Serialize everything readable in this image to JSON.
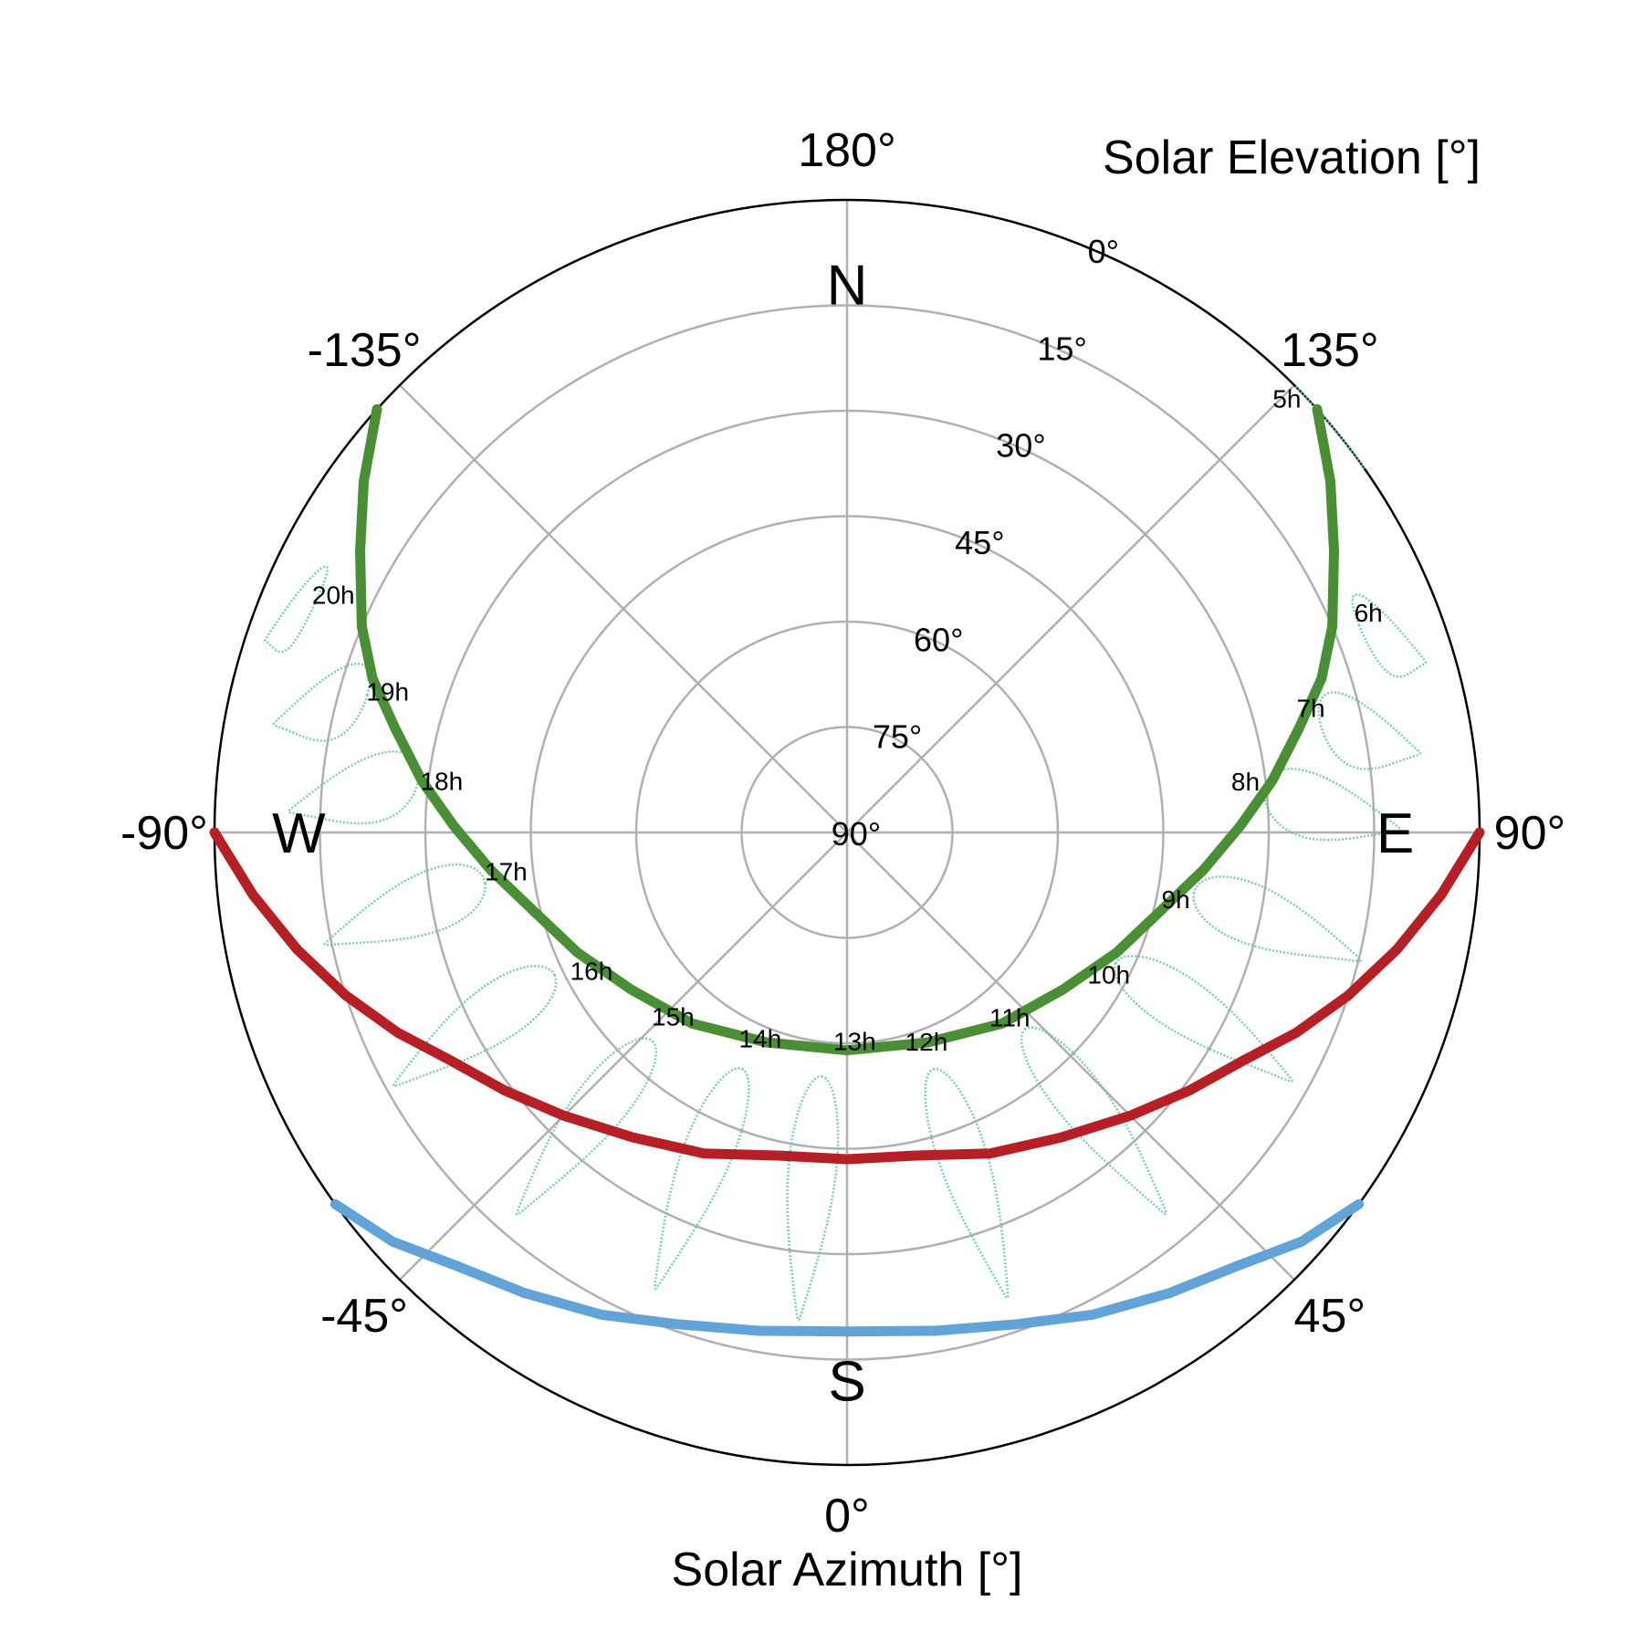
{
  "chart_data": {
    "type": "polar",
    "projection": "sun-path (azimuth 0° = south at bottom, elevation 90° at center)",
    "xlabel": "Solar Azimuth [°]",
    "ylabel": "Solar Elevation [°]",
    "azimuth_ticks": [
      {
        "value": 180,
        "label": "180°"
      },
      {
        "value": -45,
        "label": "-45°"
      },
      {
        "value": 135,
        "label": "135°"
      },
      {
        "value": -90,
        "label": "-90°"
      },
      {
        "value": 90,
        "label": "90°"
      },
      {
        "value": -135,
        "label": "-135°"
      },
      {
        "value": 45,
        "label": "45°"
      },
      {
        "value": 0,
        "label": "0°"
      }
    ],
    "elevation_ticks": [
      {
        "value": 0,
        "label": "0°"
      },
      {
        "value": 15,
        "label": "15°"
      },
      {
        "value": 30,
        "label": "30°"
      },
      {
        "value": 45,
        "label": "45°"
      },
      {
        "value": 60,
        "label": "60°"
      },
      {
        "value": 75,
        "label": "75°"
      },
      {
        "value": 90,
        "label": "90°"
      }
    ],
    "compass": [
      {
        "label": "N",
        "azimuth": 180
      },
      {
        "label": "S",
        "azimuth": 0
      },
      {
        "label": "E",
        "azimuth": 90
      },
      {
        "label": "W",
        "azimuth": -90
      }
    ],
    "elim": [
      0,
      90
    ],
    "grid": true,
    "series": [
      {
        "color": "#4a8f35",
        "daily_path_type": "summer",
        "note_color_only": true
      },
      {
        "color": "#b52026",
        "daily_path_type": "equinox"
      },
      {
        "color": "#62a3d8",
        "daily_path_type": "winter"
      }
    ],
    "daily_paths": [
      {
        "color": "#4a8f35",
        "points": [
          [
            132,
            0
          ],
          [
            126,
            5
          ],
          [
            120,
            10
          ],
          [
            113,
            15
          ],
          [
            108,
            19
          ],
          [
            103,
            24
          ],
          [
            97,
            29
          ],
          [
            91,
            34
          ],
          [
            84,
            39
          ],
          [
            76,
            44
          ],
          [
            66,
            48
          ],
          [
            54,
            52
          ],
          [
            39,
            55
          ],
          [
            21,
            58
          ],
          [
            0,
            59
          ],
          [
            -21,
            58
          ],
          [
            -39,
            55
          ],
          [
            -54,
            52
          ],
          [
            -66,
            48
          ],
          [
            -76,
            44
          ],
          [
            -84,
            39
          ],
          [
            -91,
            34
          ],
          [
            -97,
            29
          ],
          [
            -103,
            24
          ],
          [
            -108,
            19
          ],
          [
            -113,
            15
          ],
          [
            -120,
            10
          ],
          [
            -126,
            5
          ],
          [
            -132,
            0
          ]
        ]
      },
      {
        "color": "#b52026",
        "points": [
          [
            90,
            0
          ],
          [
            84,
            5
          ],
          [
            78,
            10
          ],
          [
            72,
            15
          ],
          [
            66,
            20
          ],
          [
            60,
            25
          ],
          [
            53,
            29
          ],
          [
            45,
            33
          ],
          [
            35,
            37
          ],
          [
            24,
            40
          ],
          [
            12,
            43
          ],
          [
            0,
            43.5
          ],
          [
            -12,
            43
          ],
          [
            -24,
            40
          ],
          [
            -35,
            37
          ],
          [
            -45,
            33
          ],
          [
            -53,
            29
          ],
          [
            -60,
            25
          ],
          [
            -66,
            20
          ],
          [
            -72,
            15
          ],
          [
            -78,
            10
          ],
          [
            -84,
            5
          ],
          [
            -90,
            0
          ]
        ]
      },
      {
        "color": "#62a3d8",
        "points": [
          [
            54,
            0
          ],
          [
            48,
            3
          ],
          [
            42,
            7
          ],
          [
            35,
            10
          ],
          [
            27,
            13
          ],
          [
            19,
            16
          ],
          [
            10,
            18
          ],
          [
            0,
            19
          ],
          [
            -10,
            18
          ],
          [
            -19,
            16
          ],
          [
            -27,
            13
          ],
          [
            -35,
            10
          ],
          [
            -42,
            7
          ],
          [
            -48,
            3
          ],
          [
            -54,
            0
          ]
        ]
      }
    ],
    "analemma_color": "#66c2a5",
    "analemmas": [
      {
        "label": "5h",
        "label_at": [
          134,
          3
        ],
        "summer": [
          132,
          0
        ]
      },
      {
        "label": "6h",
        "label_at": [
          112,
          10
        ],
        "summer": [
          112,
          12
        ]
      },
      {
        "label": "7h",
        "label_at": [
          104,
          22
        ],
        "summer": [
          103,
          22
        ]
      },
      {
        "label": "8h",
        "label_at": [
          96,
          33
        ],
        "summer": [
          95,
          32
        ]
      },
      {
        "label": "9h",
        "label_at": [
          77,
          42
        ],
        "summer": [
          80,
          42
        ]
      },
      {
        "label": "10h",
        "label_at": [
          60,
          47
        ],
        "summer": [
          64,
          50
        ]
      },
      {
        "label": "11h",
        "label_at": [
          40,
          54
        ],
        "summer": [
          42,
          55
        ]
      },
      {
        "label": "12h",
        "label_at": [
          20,
          57
        ],
        "summer": [
          20,
          57
        ]
      },
      {
        "label": "13h",
        "label_at": [
          2,
          59
        ],
        "summer": [
          -6,
          58
        ]
      },
      {
        "label": "14h",
        "label_at": [
          -22,
          57
        ],
        "summer": [
          -24,
          56
        ]
      },
      {
        "label": "15h",
        "label_at": [
          -42,
          53
        ],
        "summer": [
          -43,
          52
        ]
      },
      {
        "label": "16h",
        "label_at": [
          -60,
          48
        ],
        "summer": [
          -64,
          46
        ]
      },
      {
        "label": "17h",
        "label_at": [
          -82,
          41
        ],
        "summer": [
          -82,
          40
        ]
      },
      {
        "label": "18h",
        "label_at": [
          -96,
          32
        ],
        "summer": [
          -97,
          30
        ]
      },
      {
        "label": "19h",
        "label_at": [
          -106,
          22
        ],
        "summer": [
          -106,
          20
        ]
      },
      {
        "label": "20h",
        "label_at": [
          -114,
          10
        ],
        "summer": [
          -114,
          8
        ]
      }
    ]
  }
}
